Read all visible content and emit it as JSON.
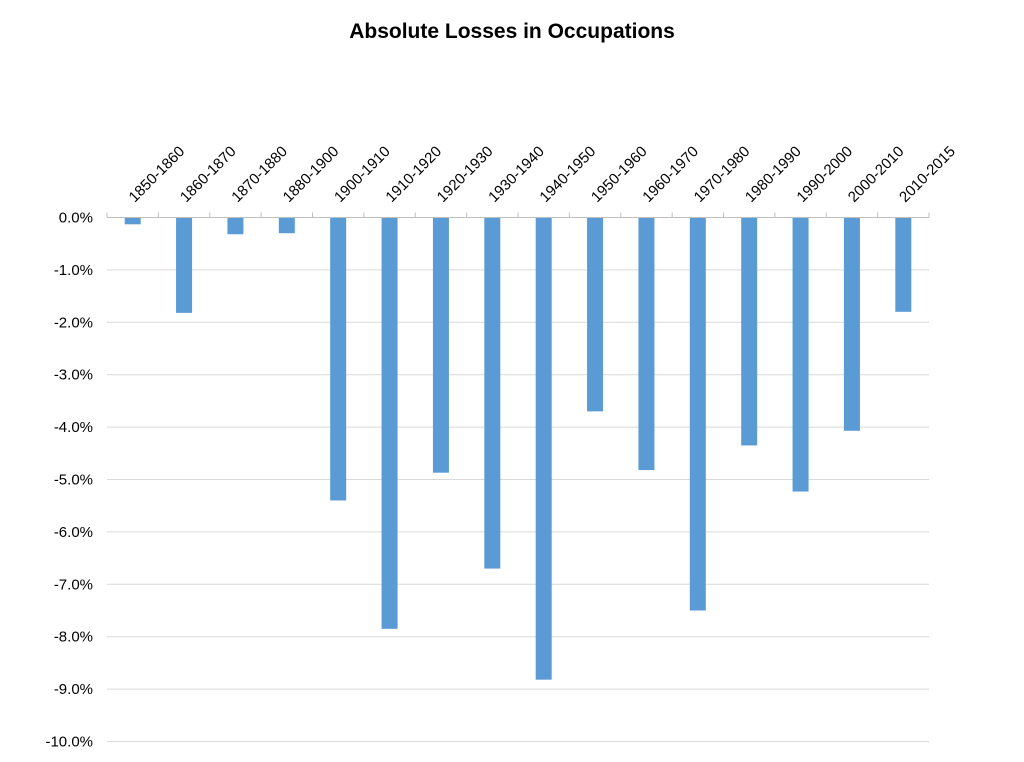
{
  "chart_data": {
    "type": "bar",
    "title": "Absolute Losses in Occupations",
    "xlabel": "",
    "ylabel": "",
    "categories": [
      "1850-1860",
      "1860-1870",
      "1870-1880",
      "1880-1900",
      "1900-1910",
      "1910-1920",
      "1920-1930",
      "1930-1940",
      "1940-1950",
      "1950-1960",
      "1960-1970",
      "1970-1980",
      "1980-1990",
      "1990-2000",
      "2000-2010",
      "2010-2015"
    ],
    "values": [
      -0.13,
      -1.82,
      -0.32,
      -0.3,
      -5.4,
      -7.85,
      -4.87,
      -6.7,
      -8.82,
      -3.7,
      -4.82,
      -7.5,
      -4.35,
      -5.23,
      -4.07,
      -1.8
    ],
    "ylim": [
      -10.0,
      0.0
    ],
    "yticks": [
      0,
      -1,
      -2,
      -3,
      -4,
      -5,
      -6,
      -7,
      -8,
      -9,
      -10
    ],
    "ytick_labels": [
      "0.0%",
      "-1.0%",
      "-2.0%",
      "-3.0%",
      "-4.0%",
      "-5.0%",
      "-6.0%",
      "-7.0%",
      "-8.0%",
      "-9.0%",
      "-10.0%"
    ],
    "x_tick_position": "top",
    "grid": true,
    "bar_color": "#5b9bd5"
  }
}
